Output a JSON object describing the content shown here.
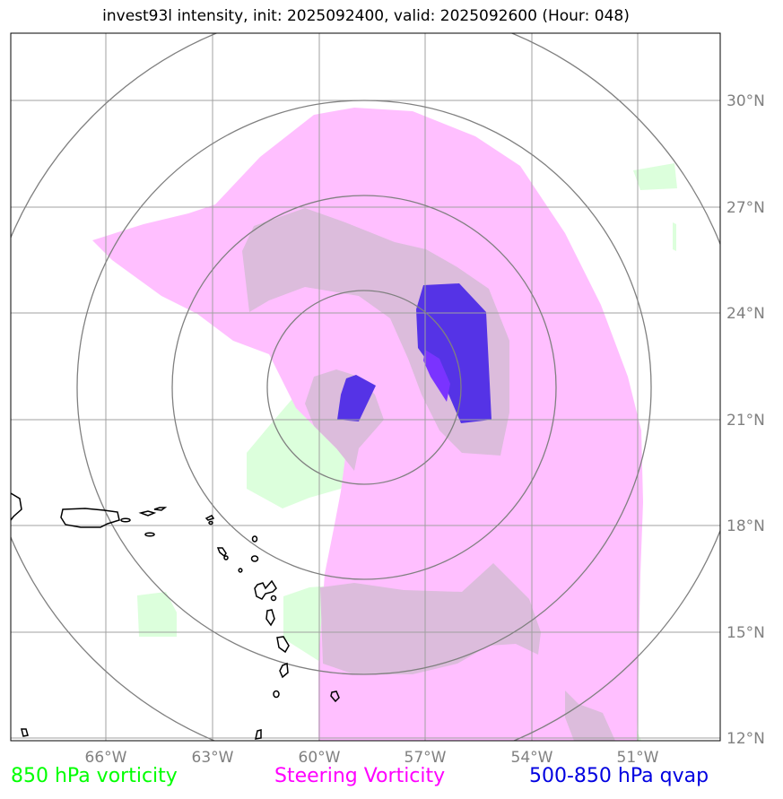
{
  "title": "invest93l intensity, init: 2025092400, valid: 2025092600 (Hour: 048)",
  "lon_labels": [
    "66°W",
    "63°W",
    "60°W",
    "57°W",
    "54°W",
    "51°W"
  ],
  "lat_labels": [
    "30°N",
    "27°N",
    "24°N",
    "21°N",
    "18°N",
    "15°N",
    "12°N"
  ],
  "legend": {
    "vort850": {
      "label": "850 hPa vorticity",
      "color": "#00ff00"
    },
    "steering": {
      "label": "Steering Vorticity",
      "color": "#ff00ff"
    },
    "qvap": {
      "label": "500-850 hPa qvap",
      "color": "#0000e0"
    }
  },
  "colors": {
    "vort850_fill": "#dcffdc",
    "steering_fill": "#ffbfff",
    "steering_strong_fill": "#dcbcdc",
    "qvap_fill": "#5533e6",
    "qvap_core_fill": "#7a33ff",
    "range_rings": "#808080",
    "gridlines": "#a0a0a0",
    "coastline": "#000000"
  },
  "map_extent": {
    "lon": [
      -68.7,
      -48.8
    ],
    "lat": [
      11.9,
      31.9
    ]
  },
  "range_rings_count": 4
}
